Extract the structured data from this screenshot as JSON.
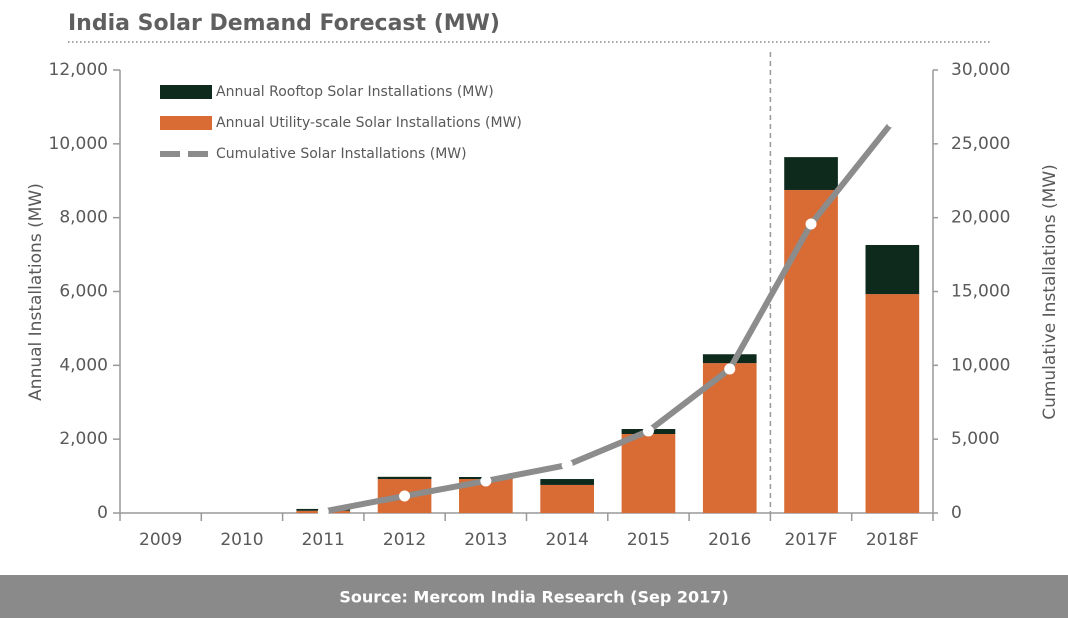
{
  "chart_data": {
    "type": "bar",
    "title": "India Solar Demand Forecast (MW)",
    "source": "Source: Mercom  India Research  (Sep 2017)",
    "categories": [
      "2009",
      "2010",
      "2011",
      "2012",
      "2013",
      "2014",
      "2015",
      "2016",
      "2017F",
      "2018F"
    ],
    "series": [
      {
        "name": "Annual Rooftop Solar Installations (MW)",
        "type": "bar",
        "color": "#0e2a1c",
        "values": [
          0,
          0,
          50,
          60,
          55,
          160,
          135,
          240,
          890,
          1330
        ]
      },
      {
        "name": "Annual Utility-scale Solar Installations (MW)",
        "type": "bar",
        "color": "#d96b35",
        "values": [
          0,
          0,
          60,
          920,
          920,
          760,
          2140,
          4060,
          8750,
          5930
        ]
      },
      {
        "name": "Cumulative Solar Installations (MW)",
        "type": "line",
        "axis": "y2",
        "color": "#8c8c8c",
        "values": [
          null,
          null,
          100,
          1150,
          2170,
          3250,
          5550,
          9750,
          19570,
          26480
        ]
      }
    ],
    "y_label": "Annual Installations (MW)",
    "y2_label": "Cumulative Installations (MW)",
    "ylim": [
      0,
      12000
    ],
    "yticks": [
      0,
      {
        "value": 2000,
        "label": "2,000"
      },
      {
        "value": 4000,
        "label": "4,000"
      },
      {
        "value": 6000,
        "label": "6,000"
      },
      {
        "value": 8000,
        "label": "8,000"
      },
      {
        "value": 10000,
        "label": "10,000"
      },
      {
        "value": 12000,
        "label": "12,000"
      }
    ],
    "y2lim": [
      0,
      30000
    ],
    "y2ticks": [
      0,
      {
        "value": 5000,
        "label": "5,000"
      },
      {
        "value": 10000,
        "label": "10,000"
      },
      {
        "value": 15000,
        "label": "15,000"
      },
      {
        "value": 20000,
        "label": "20,000"
      },
      {
        "value": 25000,
        "label": "25,000"
      },
      {
        "value": 30000,
        "label": "30,000"
      }
    ],
    "legend": "upper left",
    "grid": false
  }
}
